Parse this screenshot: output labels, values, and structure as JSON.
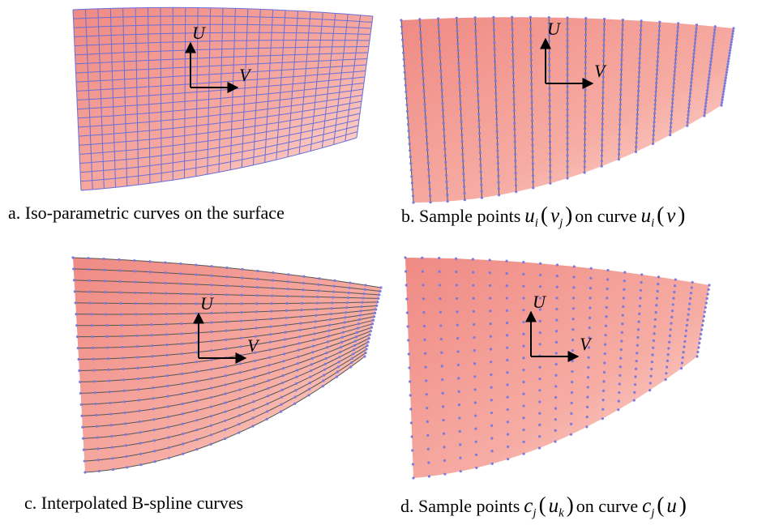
{
  "panels": [
    {
      "u_label": "U",
      "v_label": "V",
      "caption": [
        {
          "text": "a. Iso-parametric curves on the surface"
        }
      ]
    },
    {
      "u_label": "U",
      "v_label": "V",
      "caption": [
        {
          "text": "b. Sample points"
        },
        {
          "math": "u",
          "sub": "i"
        },
        {
          "text": "("
        },
        {
          "math": "v",
          "sub": "j"
        },
        {
          "text": ")"
        },
        {
          "text": "on curve"
        },
        {
          "math": "u",
          "sub": "i"
        },
        {
          "text": "("
        },
        {
          "math": "v"
        },
        {
          "text": ")"
        }
      ]
    },
    {
      "u_label": "U",
      "v_label": "V",
      "caption": [
        {
          "text": "c. Interpolated B-spline curves"
        }
      ]
    },
    {
      "u_label": "U",
      "v_label": "V",
      "caption": [
        {
          "text": "d. Sample points"
        },
        {
          "math": "c",
          "sub": "j"
        },
        {
          "text": "("
        },
        {
          "math": "u",
          "sub": "k"
        },
        {
          "text": ")"
        },
        {
          "text": "on curve"
        },
        {
          "math": "c",
          "sub": "j"
        },
        {
          "text": "("
        },
        {
          "math": "u"
        },
        {
          "text": ")"
        }
      ]
    }
  ]
}
